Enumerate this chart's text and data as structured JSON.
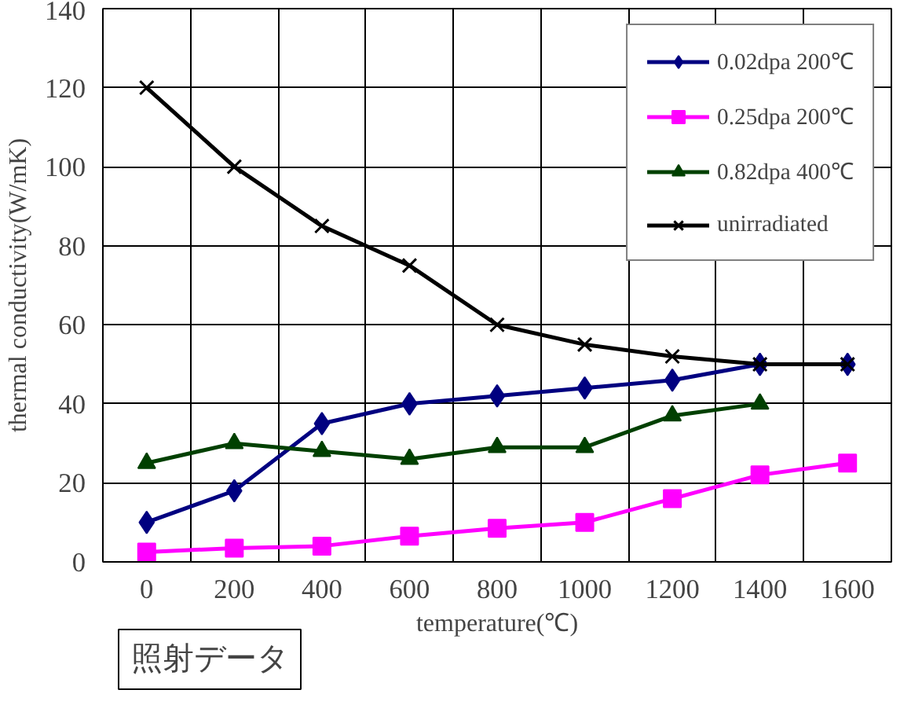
{
  "chart_data": {
    "type": "line",
    "xlabel": "temperature(℃)",
    "ylabel": "thermal conductivity(W/mK)",
    "categories": [
      "0",
      "200",
      "400",
      "600",
      "800",
      "1000",
      "1200",
      "1400",
      "1600"
    ],
    "ylim": [
      0,
      140
    ],
    "yticks": [
      0,
      20,
      40,
      60,
      80,
      100,
      120,
      140
    ],
    "grid": true,
    "legend": "top right",
    "annotations": [
      "照射データ"
    ],
    "series": [
      {
        "name": "0.02dpa 200℃",
        "color": "#000080",
        "marker": "diamond",
        "values": [
          10,
          18,
          35,
          40,
          42,
          44,
          46,
          50,
          50
        ]
      },
      {
        "name": "0.25dpa 200℃",
        "color": "#ff00ff",
        "marker": "square",
        "values": [
          2.5,
          3.5,
          4,
          6.5,
          8.5,
          10,
          16,
          22,
          25
        ]
      },
      {
        "name": "0.82dpa 400℃",
        "color": "#004000",
        "marker": "triangle",
        "values": [
          25,
          30,
          28,
          26,
          29,
          29,
          37,
          40,
          null
        ]
      },
      {
        "name": "unirradiated",
        "color": "#000000",
        "marker": "x",
        "values": [
          120,
          100,
          85,
          75,
          60,
          55,
          52,
          50,
          50
        ]
      }
    ]
  }
}
